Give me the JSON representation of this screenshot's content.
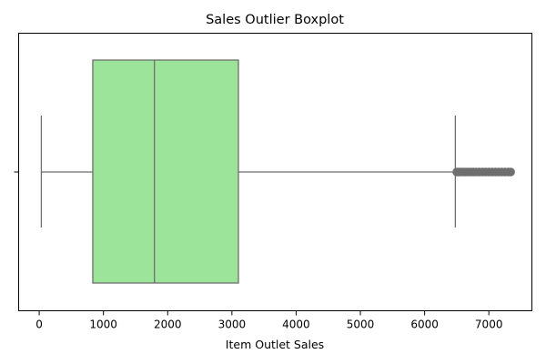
{
  "chart_data": {
    "type": "boxplot",
    "orientation": "horizontal",
    "title": "Sales Outlier Boxplot",
    "xlabel": "Item Outlet Sales",
    "ylabel": "",
    "xlim": [
      -320,
      7670
    ],
    "x_ticks": [
      {
        "value": 0,
        "label": "0"
      },
      {
        "value": 1000,
        "label": "1000"
      },
      {
        "value": 2000,
        "label": "2000"
      },
      {
        "value": 3000,
        "label": "3000"
      },
      {
        "value": 4000,
        "label": "4000"
      },
      {
        "value": 5000,
        "label": "5000"
      },
      {
        "value": 6000,
        "label": "6000"
      },
      {
        "value": 7000,
        "label": "7000"
      }
    ],
    "box": {
      "whisker_low": 33,
      "q1": 834,
      "median": 1794,
      "q3": 3101,
      "whisker_high": 6478
    },
    "outliers": [
      6500,
      6530,
      6560,
      6600,
      6640,
      6680,
      6720,
      6760,
      6800,
      6850,
      6900,
      6950,
      7000,
      7050,
      7100,
      7150,
      7200,
      7250,
      7300,
      7340
    ],
    "grid": false,
    "legend": "none",
    "colors": {
      "box_fill": "#9de49b",
      "line": "#6e6e6e",
      "outlier_fill": "#6e6e6e"
    }
  }
}
